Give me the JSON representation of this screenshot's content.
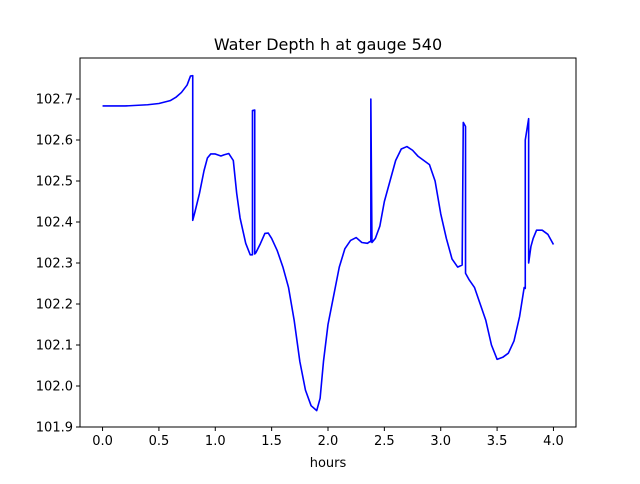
{
  "chart_data": {
    "type": "line",
    "title": "Water Depth h at gauge 540",
    "xlabel": "hours",
    "ylabel": "",
    "xlim": [
      -0.2,
      4.2
    ],
    "ylim": [
      101.9,
      102.8
    ],
    "xticks": [
      0.0,
      0.5,
      1.0,
      1.5,
      2.0,
      2.5,
      3.0,
      3.5,
      4.0
    ],
    "xtick_labels": [
      "0.0",
      "0.5",
      "1.0",
      "1.5",
      "2.0",
      "2.5",
      "3.0",
      "3.5",
      "4.0"
    ],
    "yticks": [
      101.9,
      102.0,
      102.1,
      102.2,
      102.3,
      102.4,
      102.5,
      102.6,
      102.7
    ],
    "ytick_labels": [
      "101.9",
      "102.0",
      "102.1",
      "102.2",
      "102.3",
      "102.4",
      "102.5",
      "102.6",
      "102.7"
    ],
    "grid": false,
    "series": [
      {
        "color": "#0000ff",
        "x": [
          0.0,
          0.2,
          0.4,
          0.5,
          0.6,
          0.65,
          0.7,
          0.75,
          0.78,
          0.8,
          0.8,
          0.82,
          0.86,
          0.9,
          0.93,
          0.96,
          1.0,
          1.05,
          1.08,
          1.12,
          1.16,
          1.19,
          1.22,
          1.27,
          1.31,
          1.33,
          1.33,
          1.35,
          1.35,
          1.36,
          1.4,
          1.44,
          1.47,
          1.5,
          1.55,
          1.6,
          1.65,
          1.7,
          1.75,
          1.8,
          1.85,
          1.9,
          1.93,
          1.96,
          2.0,
          2.05,
          2.1,
          2.15,
          2.2,
          2.25,
          2.3,
          2.35,
          2.37,
          2.38,
          2.38,
          2.39,
          2.42,
          2.46,
          2.5,
          2.55,
          2.6,
          2.65,
          2.7,
          2.75,
          2.8,
          2.85,
          2.9,
          2.95,
          3.0,
          3.05,
          3.1,
          3.15,
          3.19,
          3.2,
          3.2,
          3.22,
          3.22,
          3.25,
          3.3,
          3.35,
          3.4,
          3.45,
          3.5,
          3.55,
          3.6,
          3.65,
          3.7,
          3.74,
          3.75,
          3.75,
          3.78,
          3.78,
          3.8,
          3.82,
          3.85,
          3.9,
          3.95,
          4.0
        ],
        "y": [
          102.683,
          102.683,
          102.686,
          102.689,
          102.696,
          102.704,
          102.716,
          102.734,
          102.756,
          102.757,
          102.404,
          102.425,
          102.47,
          102.525,
          102.556,
          102.566,
          102.566,
          102.561,
          102.564,
          102.567,
          102.55,
          102.47,
          102.41,
          102.348,
          102.32,
          102.32,
          102.672,
          102.673,
          102.322,
          102.325,
          102.347,
          102.372,
          102.373,
          102.36,
          102.33,
          102.29,
          102.24,
          102.16,
          102.06,
          101.99,
          101.952,
          101.94,
          101.97,
          102.06,
          102.15,
          102.22,
          102.29,
          102.335,
          102.355,
          102.362,
          102.35,
          102.348,
          102.352,
          102.352,
          102.7,
          102.35,
          102.36,
          102.39,
          102.45,
          102.5,
          102.55,
          102.578,
          102.584,
          102.575,
          102.56,
          102.55,
          102.54,
          102.5,
          102.42,
          102.36,
          102.31,
          102.29,
          102.295,
          102.643,
          102.643,
          102.633,
          102.275,
          102.26,
          102.24,
          102.2,
          102.16,
          102.1,
          102.065,
          102.07,
          102.08,
          102.11,
          102.17,
          102.24,
          102.238,
          102.6,
          102.652,
          102.3,
          102.34,
          102.36,
          102.38,
          102.38,
          102.37,
          102.345
        ]
      }
    ]
  }
}
